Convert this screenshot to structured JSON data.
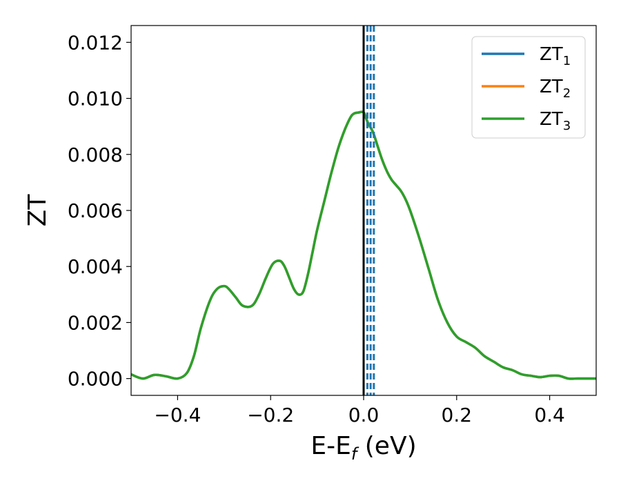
{
  "chart_data": {
    "type": "line",
    "xlabel": {
      "main": "E-E",
      "sub": "f",
      "tail": " (eV)"
    },
    "ylabel": "ZT",
    "xlim": [
      -0.5,
      0.5
    ],
    "ylim": [
      -0.0006,
      0.0126
    ],
    "xticks": [
      -0.4,
      -0.2,
      0.0,
      0.2,
      0.4
    ],
    "xtick_labels": [
      "−0.4",
      "−0.2",
      "0.0",
      "0.2",
      "0.4"
    ],
    "yticks": [
      0.0,
      0.002,
      0.004,
      0.006,
      0.008,
      0.01,
      0.012
    ],
    "ytick_labels": [
      "0.000",
      "0.002",
      "0.004",
      "0.006",
      "0.008",
      "0.010",
      "0.012"
    ],
    "grid": false,
    "legend_position": "top-right",
    "series": [
      {
        "name": "ZT",
        "sub": "1",
        "color": "#1f77b4"
      },
      {
        "name": "ZT",
        "sub": "2",
        "color": "#ff7f0e"
      },
      {
        "name": "ZT",
        "sub": "3",
        "color": "#2ca02c"
      }
    ],
    "curve": {
      "x": [
        -0.5,
        -0.475,
        -0.45,
        -0.425,
        -0.4,
        -0.38,
        -0.365,
        -0.35,
        -0.33,
        -0.315,
        -0.3,
        -0.29,
        -0.275,
        -0.26,
        -0.24,
        -0.225,
        -0.21,
        -0.195,
        -0.18,
        -0.17,
        -0.16,
        -0.15,
        -0.14,
        -0.13,
        -0.12,
        -0.11,
        -0.1,
        -0.085,
        -0.07,
        -0.055,
        -0.04,
        -0.025,
        -0.01,
        0.0,
        0.005,
        0.01,
        0.02,
        0.03,
        0.04,
        0.05,
        0.06,
        0.07,
        0.08,
        0.09,
        0.1,
        0.12,
        0.14,
        0.16,
        0.18,
        0.2,
        0.22,
        0.24,
        0.26,
        0.28,
        0.3,
        0.32,
        0.34,
        0.36,
        0.38,
        0.4,
        0.42,
        0.44,
        0.46,
        0.48,
        0.5
      ],
      "y": [
        0.00015,
        0.0,
        0.00013,
        8e-05,
        0.0,
        0.0002,
        0.0008,
        0.0018,
        0.0028,
        0.0032,
        0.0033,
        0.0032,
        0.0029,
        0.0026,
        0.0026,
        0.003,
        0.0036,
        0.0041,
        0.0042,
        0.004,
        0.0036,
        0.0032,
        0.003,
        0.0031,
        0.0037,
        0.0045,
        0.0053,
        0.0063,
        0.0073,
        0.0082,
        0.0089,
        0.0094,
        0.0095,
        0.0095,
        0.0093,
        0.0091,
        0.0088,
        0.0083,
        0.0078,
        0.0074,
        0.0071,
        0.0069,
        0.0067,
        0.0064,
        0.006,
        0.005,
        0.0039,
        0.0028,
        0.002,
        0.0015,
        0.0013,
        0.0011,
        0.0008,
        0.0006,
        0.0004,
        0.0003,
        0.00015,
        0.0001,
        5e-05,
        0.0001,
        0.0001,
        0.0,
        0.0,
        0.0,
        0.0
      ]
    },
    "vertical_lines": [
      {
        "x": 0.0,
        "color": "#000000",
        "style": "solid"
      },
      {
        "x": 0.008,
        "color": "#1f77b4",
        "style": "dashed"
      },
      {
        "x": 0.015,
        "color": "#1f77b4",
        "style": "dashed"
      },
      {
        "x": 0.022,
        "color": "#1f77b4",
        "style": "dashed"
      }
    ]
  }
}
